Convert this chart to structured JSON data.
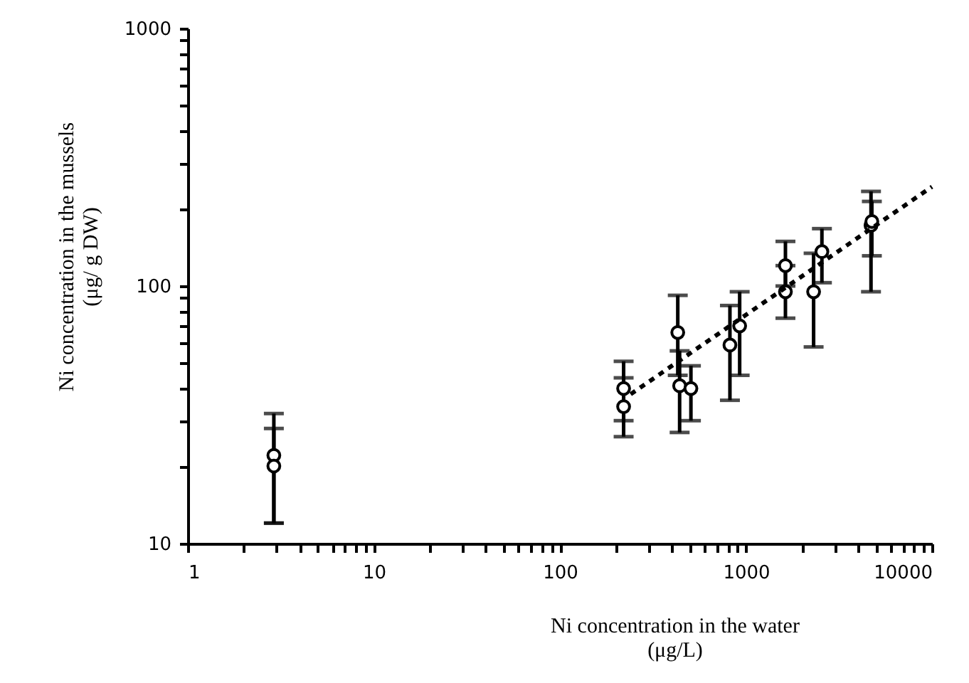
{
  "chart_data": {
    "type": "scatter",
    "xlabel": "Ni concentration in the water\n(μg/L)",
    "ylabel": "Ni concentration in the mussels\n(μg/ g DW)",
    "log": "xy",
    "grid": false,
    "xlim": [
      1,
      10000
    ],
    "xticks": [
      1,
      {
        "value": 2,
        "label": null
      },
      {
        "value": 3,
        "label": null
      },
      {
        "value": 4,
        "label": null
      },
      {
        "value": 5,
        "label": null
      },
      {
        "value": 6,
        "label": null
      },
      {
        "value": 7,
        "label": null
      },
      {
        "value": 8,
        "label": null
      },
      {
        "value": 9,
        "label": null
      },
      10,
      {
        "value": 20,
        "label": null
      },
      {
        "value": 30,
        "label": null
      },
      {
        "value": 40,
        "label": null
      },
      {
        "value": 50,
        "label": null
      },
      {
        "value": 60,
        "label": null
      },
      {
        "value": 70,
        "label": null
      },
      {
        "value": 80,
        "label": null
      },
      {
        "value": 90,
        "label": null
      },
      100,
      {
        "value": 200,
        "label": null
      },
      {
        "value": 300,
        "label": null
      },
      {
        "value": 400,
        "label": null
      },
      {
        "value": 500,
        "label": null
      },
      {
        "value": 600,
        "label": null
      },
      {
        "value": 700,
        "label": null
      },
      {
        "value": 800,
        "label": null
      },
      {
        "value": 900,
        "label": null
      },
      1000,
      {
        "value": 2000,
        "label": null
      },
      {
        "value": 3000,
        "label": null
      },
      {
        "value": 4000,
        "label": null
      },
      {
        "value": 5000,
        "label": null
      },
      {
        "value": 6000,
        "label": null
      },
      {
        "value": 7000,
        "label": null
      },
      {
        "value": 8000,
        "label": null
      },
      {
        "value": 9000,
        "label": null
      },
      10000
    ],
    "ylim": [
      10,
      1000
    ],
    "yticks": [
      10,
      {
        "value": 20,
        "label": null
      },
      {
        "value": 30,
        "label": null
      },
      {
        "value": 40,
        "label": null
      },
      {
        "value": 50,
        "label": null
      },
      {
        "value": 60,
        "label": null
      },
      {
        "value": 70,
        "label": null
      },
      {
        "value": 80,
        "label": null
      },
      {
        "value": 90,
        "label": null
      },
      100,
      {
        "value": 200,
        "label": null
      },
      {
        "value": 300,
        "label": null
      },
      {
        "value": 400,
        "label": null
      },
      {
        "value": 500,
        "label": null
      },
      {
        "value": 600,
        "label": null
      },
      {
        "value": 700,
        "label": null
      },
      {
        "value": 800,
        "label": null
      },
      {
        "value": 900,
        "label": null
      },
      1000
    ],
    "series": [
      {
        "type": "scatter",
        "color": "#000000",
        "marker": "circle",
        "x": [
          2.9,
          2.9,
          220,
          220,
          430,
          440,
          506,
          820,
          925,
          1630,
          1630,
          2310,
          2560,
          4700,
          4750
        ],
        "values": [
          22,
          20,
          40,
          34,
          66,
          41,
          40,
          59,
          70,
          120,
          95,
          95,
          136,
          172,
          178
        ],
        "errors": [
          [
            12,
            28
          ],
          [
            12,
            32
          ],
          [
            30,
            51
          ],
          [
            26,
            44
          ],
          [
            45,
            92
          ],
          [
            27,
            56
          ],
          [
            30,
            49
          ],
          [
            36,
            84
          ],
          [
            45,
            95
          ],
          [
            100,
            149
          ],
          [
            75,
            120
          ],
          [
            58,
            134
          ],
          [
            103,
            167
          ],
          [
            95,
            233
          ],
          [
            131,
            213
          ]
        ]
      },
      {
        "type": "line",
        "color": "#000000",
        "line_style": "dotted",
        "marker": "none",
        "x": [
          240,
          10000
        ],
        "values": [
          38,
          243
        ]
      }
    ]
  }
}
